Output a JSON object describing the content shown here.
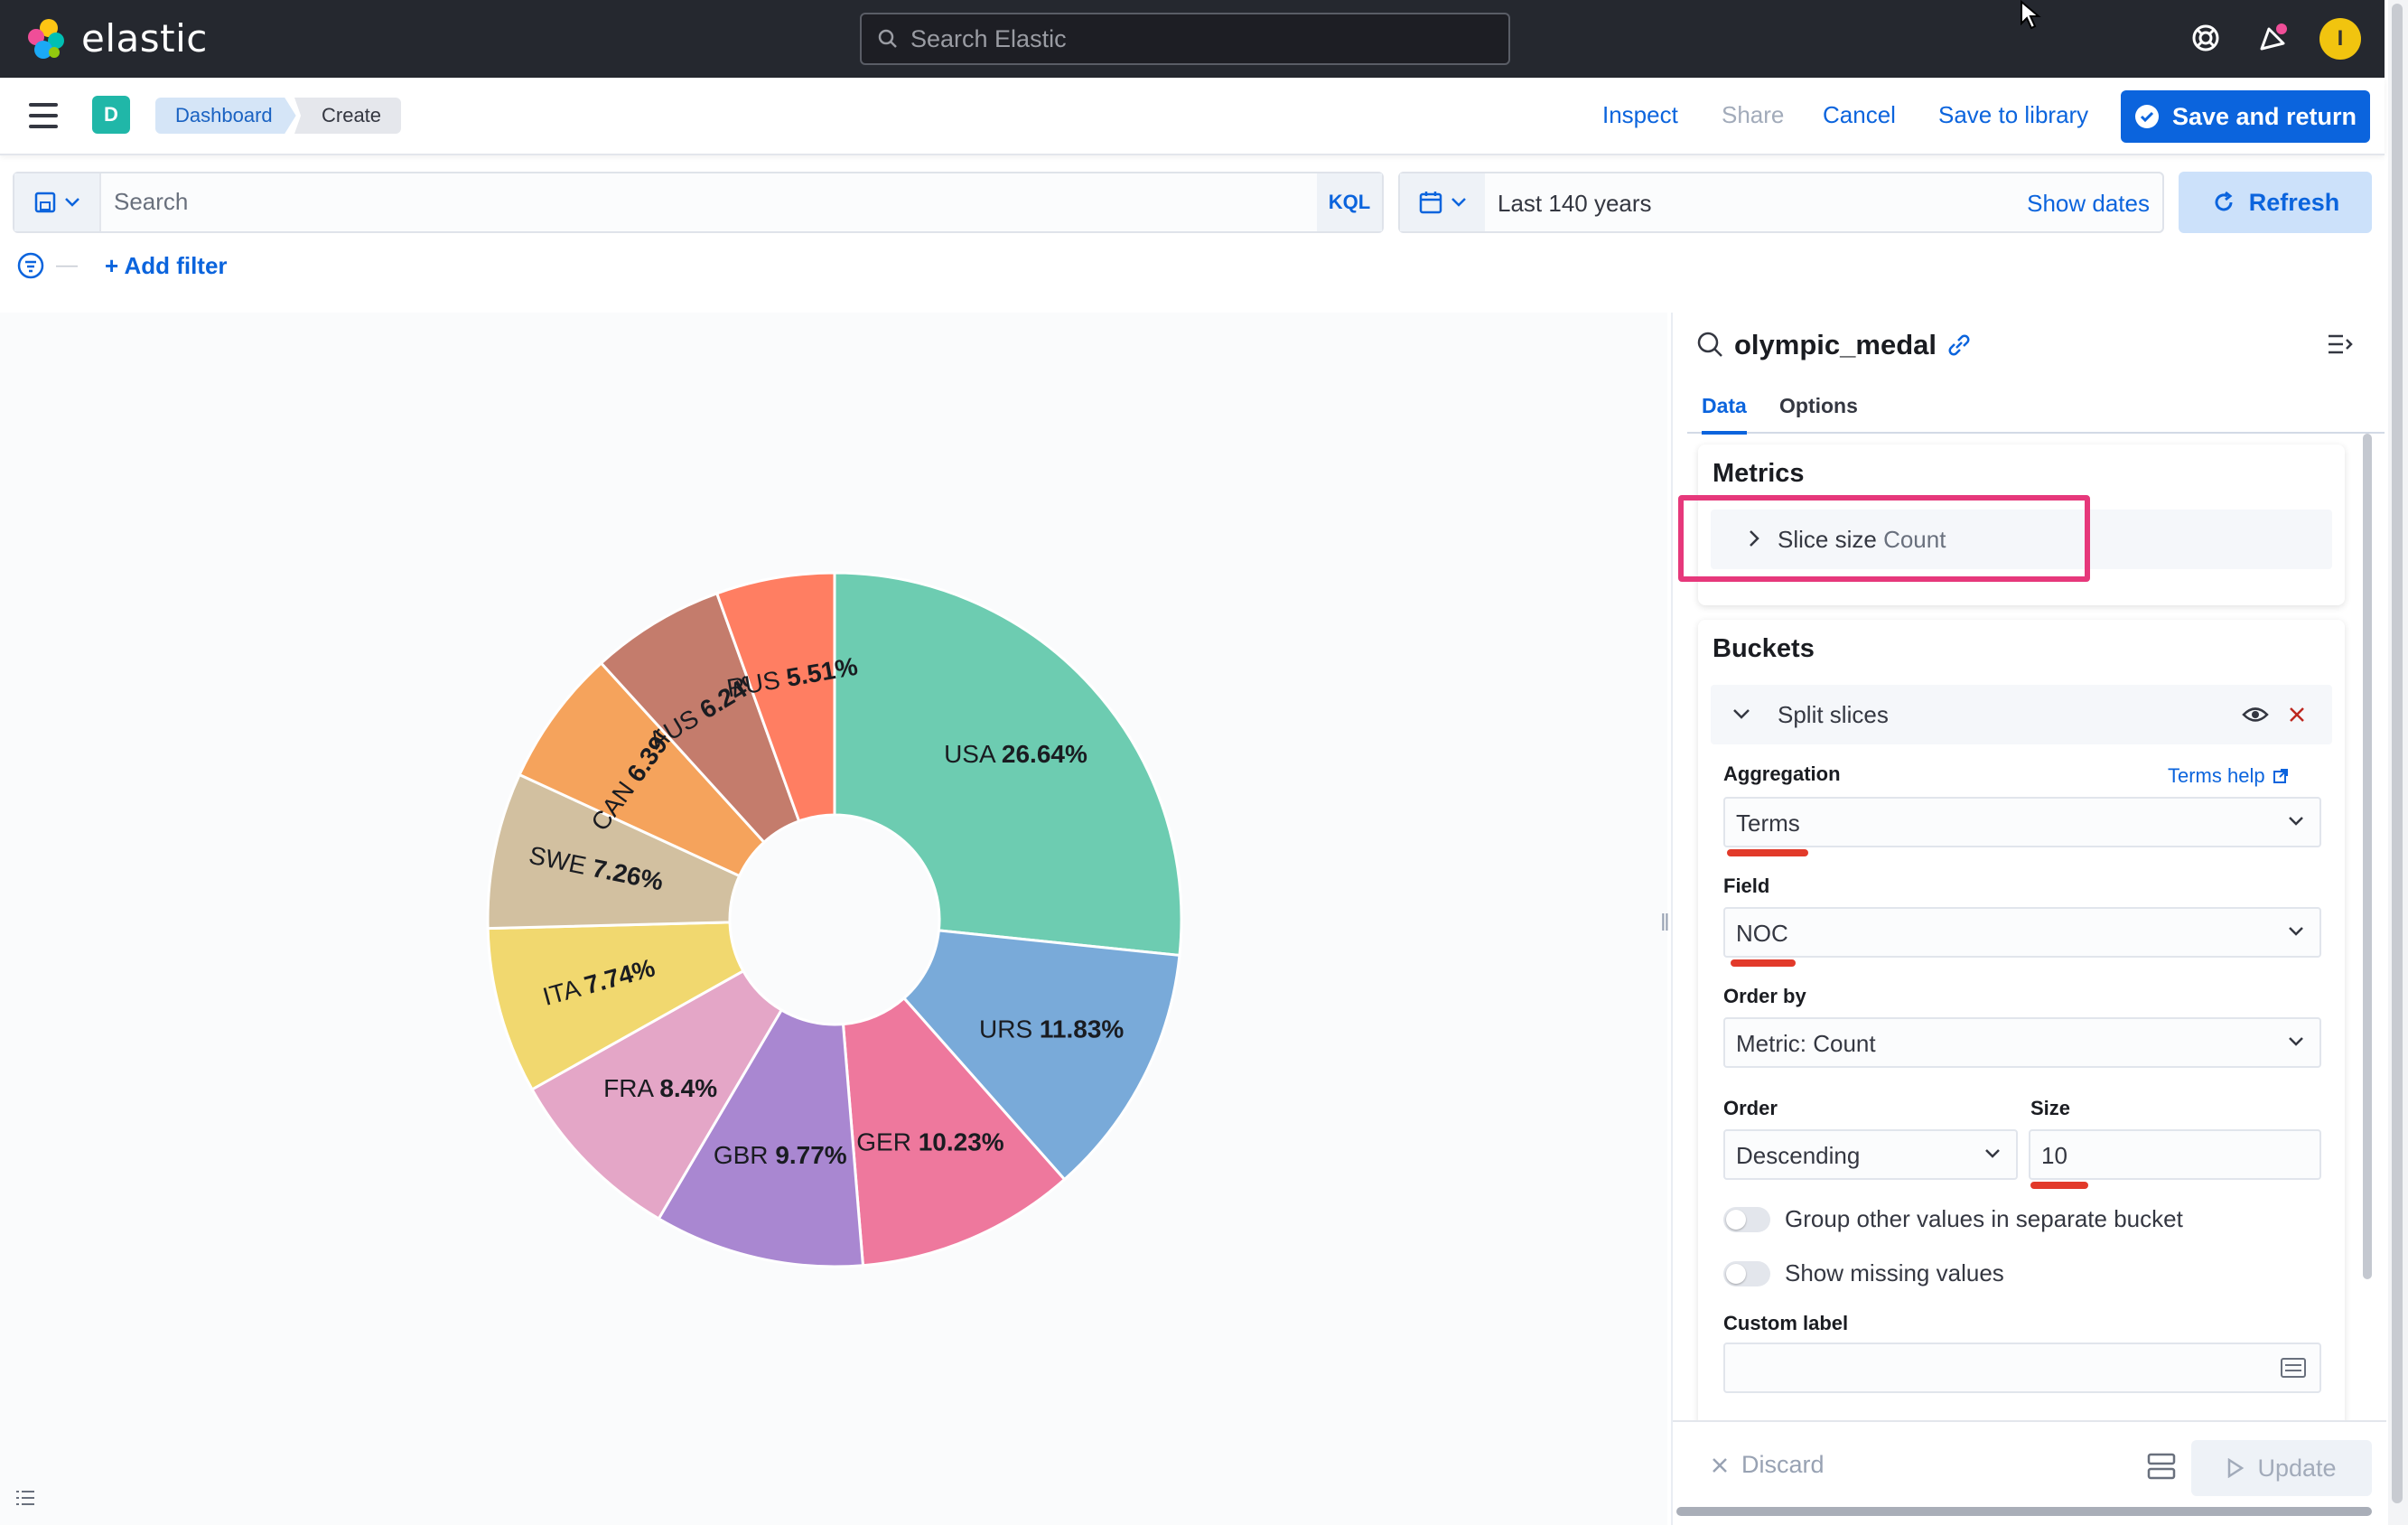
{
  "app": {
    "brand": "elastic",
    "global_search_placeholder": "Search Elastic",
    "avatar_initial": "I"
  },
  "nav": {
    "space_initial": "D",
    "breadcrumbs": [
      "Dashboard",
      "Create"
    ],
    "actions": {
      "inspect": "Inspect",
      "share": "Share",
      "cancel": "Cancel",
      "save_to_library": "Save to library",
      "save_and_return": "Save and return"
    }
  },
  "query": {
    "search_placeholder": "Search",
    "language": "KQL",
    "time_range": "Last 140 years",
    "show_dates": "Show dates",
    "refresh": "Refresh",
    "add_filter": "+ Add filter"
  },
  "panel": {
    "index_pattern": "olympic_medal",
    "tabs": [
      "Data",
      "Options"
    ],
    "metrics": {
      "title": "Metrics",
      "slice_size_label": "Slice size",
      "slice_size_value": "Count"
    },
    "buckets": {
      "title": "Buckets",
      "split_label": "Split slices",
      "aggregation_label": "Aggregation",
      "terms_help": "Terms help",
      "aggregation_value": "Terms",
      "field_label": "Field",
      "field_value": "NOC",
      "order_by_label": "Order by",
      "order_by_value": "Metric: Count",
      "order_label": "Order",
      "order_value": "Descending",
      "size_label": "Size",
      "size_value": "10",
      "group_other_label": "Group other values in separate bucket",
      "show_missing_label": "Show missing values",
      "custom_label_label": "Custom label",
      "custom_label_value": ""
    },
    "footer": {
      "discard": "Discard",
      "update": "Update"
    }
  },
  "chart_data": {
    "type": "pie",
    "donut": true,
    "categories": [
      "USA",
      "URS",
      "GER",
      "GBR",
      "FRA",
      "ITA",
      "SWE",
      "CAN",
      "AUS",
      "RUS"
    ],
    "values": [
      26.64,
      11.83,
      10.23,
      9.77,
      8.4,
      7.74,
      7.26,
      6.39,
      6.24,
      5.51
    ],
    "labels": [
      "USA 26.64%",
      "URS 11.83%",
      "GER 10.23%",
      "GBR 9.77%",
      "FRA 8.4%",
      "ITA 7.74%",
      "SWE 7.26%",
      "CAN 6.39%",
      "AUS 6.24%",
      "RUS 5.51%"
    ],
    "colors": [
      "#6dccb1",
      "#79aad9",
      "#ee789d",
      "#a987d1",
      "#e4a6c7",
      "#f1d86f",
      "#d2c0a0",
      "#f5a35c",
      "#c47c6c",
      "#ff7e62"
    ]
  }
}
